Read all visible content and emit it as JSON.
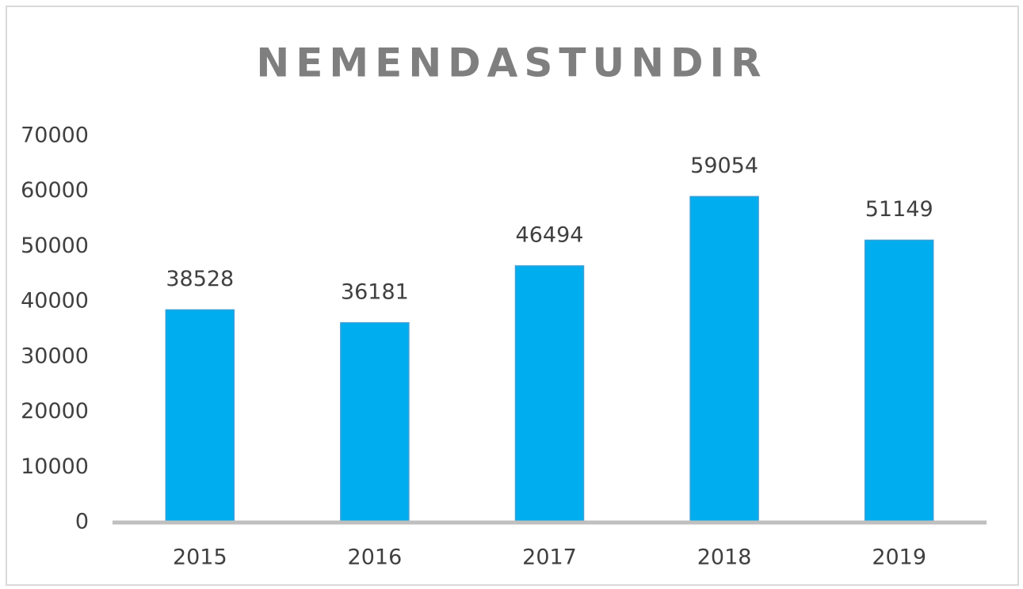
{
  "chart_data": {
    "type": "bar",
    "title": "NEMENDASTUNDIR",
    "categories": [
      "2015",
      "2016",
      "2017",
      "2018",
      "2019"
    ],
    "values": [
      38528,
      36181,
      46494,
      59054,
      51149
    ],
    "color": "#00aeef",
    "ylim": [
      0,
      70000
    ],
    "yticks": [
      0,
      10000,
      20000,
      30000,
      40000,
      50000,
      60000,
      70000
    ],
    "grid": false,
    "data_labels": true
  }
}
